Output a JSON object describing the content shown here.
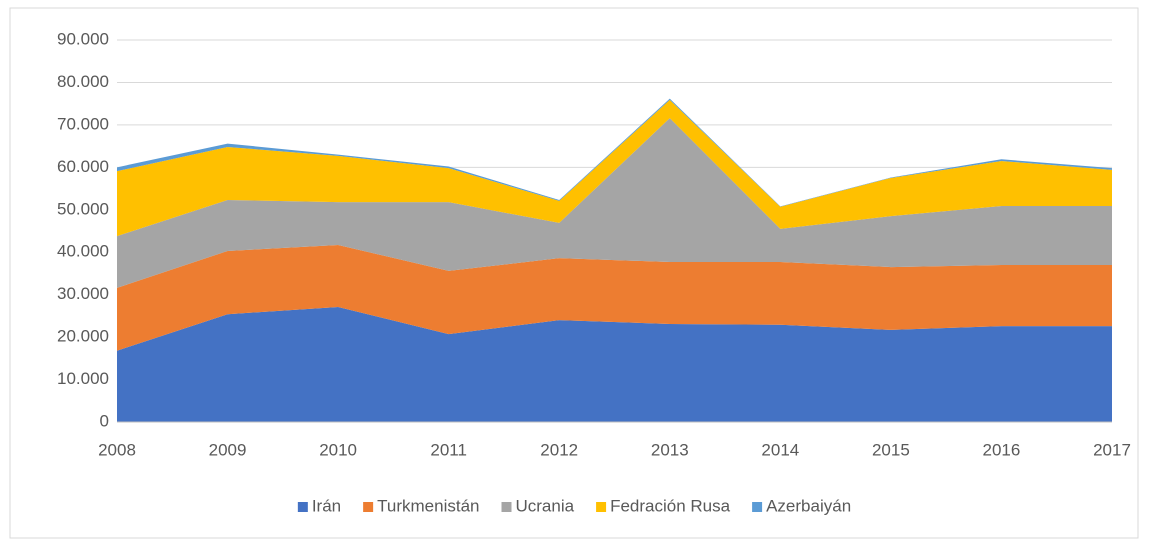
{
  "chart_data": {
    "type": "stacked_area",
    "categories": [
      "2008",
      "2009",
      "2010",
      "2011",
      "2012",
      "2013",
      "2014",
      "2015",
      "2016",
      "2017"
    ],
    "series": [
      {
        "name": "Irán",
        "color": "#4472c4",
        "values": [
          16.8,
          25.4,
          27.1,
          20.7,
          24.0,
          23.1,
          22.9,
          21.7,
          22.6,
          22.6
        ]
      },
      {
        "name": "Turkmenistán",
        "color": "#ed7d31",
        "values": [
          14.8,
          14.9,
          14.6,
          14.9,
          14.6,
          14.6,
          14.8,
          14.8,
          14.4,
          14.4
        ]
      },
      {
        "name": "Ucrania",
        "color": "#a5a5a5",
        "values": [
          12.2,
          12.0,
          10.1,
          16.2,
          8.3,
          33.9,
          7.8,
          12.0,
          13.9,
          13.9
        ]
      },
      {
        "name": "Fedración Rusa",
        "color": "#ffc000",
        "values": [
          15.3,
          12.5,
          10.9,
          8.0,
          5.2,
          4.3,
          5.2,
          9.0,
          10.6,
          8.5
        ]
      },
      {
        "name": "Azerbaiyán",
        "color": "#5b9bd5",
        "values": [
          0.9,
          0.8,
          0.3,
          0.4,
          0.2,
          0.3,
          0.1,
          0.1,
          0.4,
          0.4
        ]
      }
    ],
    "ylim": [
      0,
      90
    ],
    "yticks": [
      0,
      {
        "value": 10,
        "label": "10.000"
      },
      {
        "value": 20,
        "label": "20.000"
      },
      {
        "value": 30,
        "label": "30.000"
      },
      {
        "value": 40,
        "label": "40.000"
      },
      {
        "value": 50,
        "label": "50.000"
      },
      {
        "value": 60,
        "label": "60.000"
      },
      {
        "value": 70,
        "label": "70.000"
      },
      {
        "value": 80,
        "label": "80.000"
      },
      {
        "value": 90,
        "label": "90.000"
      }
    ],
    "grid": true,
    "legend": "bottom"
  }
}
